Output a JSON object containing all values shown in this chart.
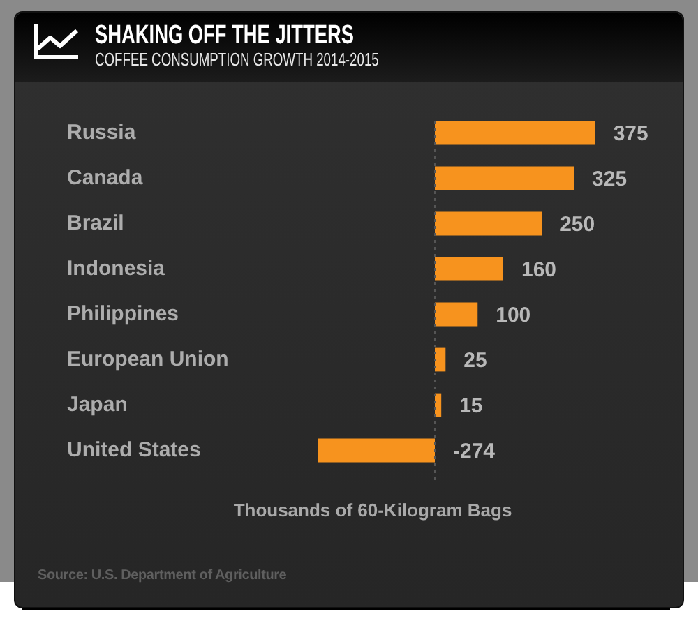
{
  "chart_data": {
    "type": "bar",
    "orientation": "horizontal",
    "title": "SHAKING OFF THE JITTERS",
    "subtitle": "COFFEE CONSUMPTION GROWTH 2014-2015",
    "xlabel": "Thousands of 60-Kilogram Bags",
    "categories": [
      "Russia",
      "Canada",
      "Brazil",
      "Indonesia",
      "Philippines",
      "European Union",
      "Japan",
      "United States"
    ],
    "values": [
      375,
      325,
      250,
      160,
      100,
      25,
      15,
      -274
    ],
    "color": "#f7931e",
    "data_labels": true,
    "tick_labels": "y",
    "grid": false,
    "legend": false,
    "ref_lines": [
      {
        "axis": "x",
        "value": 0,
        "color": "#555555",
        "line_style": "dotted"
      }
    ],
    "annotations": [
      "Source: U.S. Department of Agriculture"
    ]
  }
}
